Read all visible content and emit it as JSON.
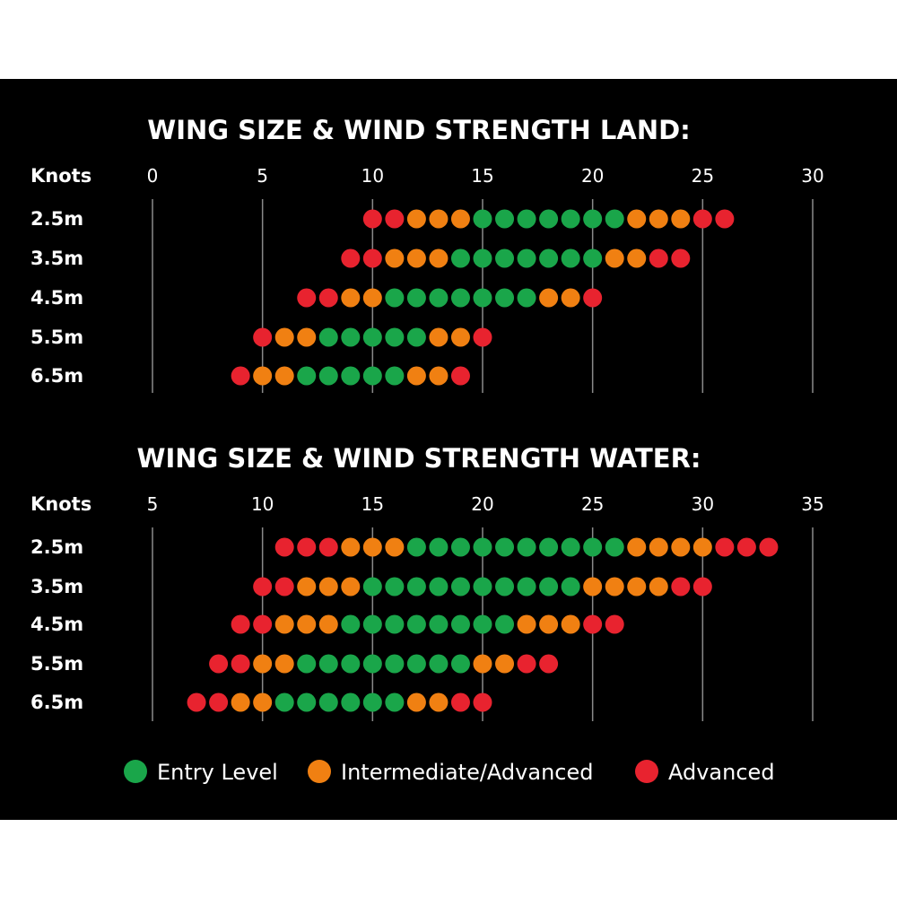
{
  "colors": {
    "entry": "#1aa64a",
    "intermediate": "#f08012",
    "advanced": "#e8232f",
    "grid": "#8a8a8a",
    "background": "#000000"
  },
  "legend": [
    {
      "key": "entry",
      "label": "Entry Level"
    },
    {
      "key": "intermediate",
      "label": "Intermediate/Advanced"
    },
    {
      "key": "advanced",
      "label": "Advanced"
    }
  ],
  "chart_data": [
    {
      "type": "scatter",
      "title": "WING SIZE & WIND STRENGTH LAND:",
      "row_header": "Knots",
      "xlabel": "Knots",
      "xlim": [
        0,
        30
      ],
      "ticks": [
        0,
        5,
        10,
        15,
        20,
        25,
        30
      ],
      "grid": true,
      "categories": [
        "2.5m",
        "3.5m",
        "4.5m",
        "5.5m",
        "6.5m"
      ],
      "series": [
        {
          "category": "2.5m",
          "start": 10,
          "levels": [
            "A",
            "A",
            "I",
            "I",
            "I",
            "E",
            "E",
            "E",
            "E",
            "E",
            "E",
            "E",
            "I",
            "I",
            "I",
            "A",
            "A"
          ]
        },
        {
          "category": "3.5m",
          "start": 9,
          "levels": [
            "A",
            "A",
            "I",
            "I",
            "I",
            "E",
            "E",
            "E",
            "E",
            "E",
            "E",
            "E",
            "I",
            "I",
            "A",
            "A"
          ]
        },
        {
          "category": "4.5m",
          "start": 7,
          "levels": [
            "A",
            "A",
            "I",
            "I",
            "E",
            "E",
            "E",
            "E",
            "E",
            "E",
            "E",
            "I",
            "I",
            "A"
          ]
        },
        {
          "category": "5.5m",
          "start": 5,
          "levels": [
            "A",
            "I",
            "I",
            "E",
            "E",
            "E",
            "E",
            "E",
            "I",
            "I",
            "A"
          ]
        },
        {
          "category": "6.5m",
          "start": 4,
          "levels": [
            "A",
            "I",
            "I",
            "E",
            "E",
            "E",
            "E",
            "E",
            "I",
            "I",
            "A"
          ]
        }
      ]
    },
    {
      "type": "scatter",
      "title": "WING SIZE & WIND STRENGTH WATER:",
      "row_header": "Knots",
      "xlabel": "Knots",
      "xlim": [
        5,
        35
      ],
      "ticks": [
        5,
        10,
        15,
        20,
        25,
        30,
        35
      ],
      "grid": true,
      "categories": [
        "2.5m",
        "3.5m",
        "4.5m",
        "5.5m",
        "6.5m"
      ],
      "series": [
        {
          "category": "2.5m",
          "start": 11,
          "levels": [
            "A",
            "A",
            "A",
            "I",
            "I",
            "I",
            "E",
            "E",
            "E",
            "E",
            "E",
            "E",
            "E",
            "E",
            "E",
            "E",
            "I",
            "I",
            "I",
            "I",
            "A",
            "A",
            "A"
          ]
        },
        {
          "category": "3.5m",
          "start": 10,
          "levels": [
            "A",
            "A",
            "I",
            "I",
            "I",
            "E",
            "E",
            "E",
            "E",
            "E",
            "E",
            "E",
            "E",
            "E",
            "E",
            "I",
            "I",
            "I",
            "I",
            "A",
            "A"
          ]
        },
        {
          "category": "4.5m",
          "start": 9,
          "levels": [
            "A",
            "A",
            "I",
            "I",
            "I",
            "E",
            "E",
            "E",
            "E",
            "E",
            "E",
            "E",
            "E",
            "I",
            "I",
            "I",
            "A",
            "A"
          ]
        },
        {
          "category": "5.5m",
          "start": 8,
          "levels": [
            "A",
            "A",
            "I",
            "I",
            "E",
            "E",
            "E",
            "E",
            "E",
            "E",
            "E",
            "E",
            "I",
            "I",
            "A",
            "A"
          ]
        },
        {
          "category": "6.5m",
          "start": 7,
          "levels": [
            "A",
            "A",
            "I",
            "I",
            "E",
            "E",
            "E",
            "E",
            "E",
            "E",
            "I",
            "I",
            "A",
            "A"
          ]
        }
      ]
    }
  ]
}
